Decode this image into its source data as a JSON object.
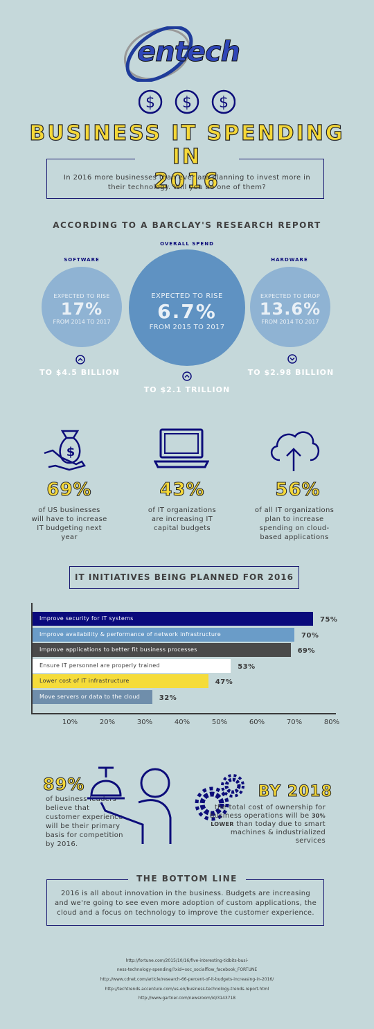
{
  "logo": {
    "text": "entech"
  },
  "title": {
    "line1": "BUSINESS IT SPENDING",
    "line2": "IN 2016"
  },
  "intro": "In 2016 more businesses than ever are planning to invest more in their technology. Will you be one of them?",
  "research": {
    "heading": "ACCORDING TO A BARCLAY'S RESEARCH REPORT",
    "software": {
      "label": "SOFTWARE",
      "top": "EXPECTED TO RISE",
      "value": "17%",
      "period": "FROM 2014 TO 2017",
      "direction": "up",
      "amount": "TO $4.5 BILLION"
    },
    "overall": {
      "label": "OVERALL SPEND",
      "top": "EXPECTED TO RISE",
      "value": "6.7%",
      "period": "FROM 2015 TO 2017",
      "direction": "up",
      "amount": "TO $2.1 TRILLION"
    },
    "hardware": {
      "label": "HARDWARE",
      "top": "EXPECTED TO DROP",
      "value": "13.6%",
      "period": "FROM 2014 TO 2017",
      "direction": "down",
      "amount": "TO $2.98 BILLION"
    }
  },
  "stats": [
    {
      "icon": "money-bag-hand-icon",
      "value": "69%",
      "text": "of US businesses will have to increase IT budgeting next year"
    },
    {
      "icon": "laptop-icon",
      "value": "43%",
      "text": "of IT organizations are increasing IT capital budgets"
    },
    {
      "icon": "cloud-upload-icon",
      "value": "56%",
      "text": "of all IT organizations plan to increase spending on cloud-based applications"
    }
  ],
  "initiatives": {
    "heading": "IT INITIATIVES BEING PLANNED FOR 2016"
  },
  "chart_data": {
    "type": "bar",
    "orientation": "horizontal",
    "categories": [
      "Improve security for IT systems",
      "Improve availability & performance of network infrastructure",
      "Improve applications to better fit business processes",
      "Ensure IT personnel are properly trained",
      "Lower cost of IT infrastructure",
      "Move servers or data to the cloud"
    ],
    "values": [
      75,
      70,
      69,
      53,
      47,
      32
    ],
    "value_labels": [
      "75%",
      "70%",
      "69%",
      "53%",
      "47%",
      "32%"
    ],
    "colors": [
      "#0a0a7c",
      "#6a9cc8",
      "#4a4a4a",
      "#ffffff",
      "#f5dc3a",
      "#6f8eab"
    ],
    "text_colors": [
      "#ffffff",
      "#ffffff",
      "#ffffff",
      "#3a3a3a",
      "#3a3a3a",
      "#ffffff"
    ],
    "xlim": [
      0,
      80
    ],
    "xticks": [
      "10%",
      "20%",
      "30%",
      "40%",
      "50%",
      "60%",
      "70%",
      "80%"
    ],
    "grid": false
  },
  "leaders": {
    "value": "89%",
    "text": "of business leaders believe that customer experience will be their primary basis for competition by 2016."
  },
  "by2018": {
    "heading": "BY 2018",
    "text_before": "the total cost of ownership for business operations will be ",
    "emphasis": "30% LOWER",
    "text_after": " than today due to smart machines & industrialized services"
  },
  "bottom_line": {
    "heading": "THE BOTTOM LINE",
    "text": "2016 is all about innovation in the business. Budgets are increasing and we're going to see even more adoption of custom applications, the cloud and a focus on technology to improve the customer experience."
  },
  "sources": [
    "http://fortune.com/2015/10/16/five-interesting-tidbits-busi-",
    "ness-technology-spending/?xid=soc_socialflow_facebook_FORTUNE",
    "http://www.cdnet.com/article/research-66-percent-of-it-budgets-increasing-in-2016/",
    "http://techtrends.accenture.com/us-en/business-technology-trends-report.html",
    "http://www.gartner.com/newsroom/id/3143718"
  ],
  "colors": {
    "background": "#c5d8da",
    "navy": "#0d0d7a",
    "yellow": "#f5d838",
    "circle_small": "#8fb3d3",
    "circle_big": "#5f92c2"
  }
}
